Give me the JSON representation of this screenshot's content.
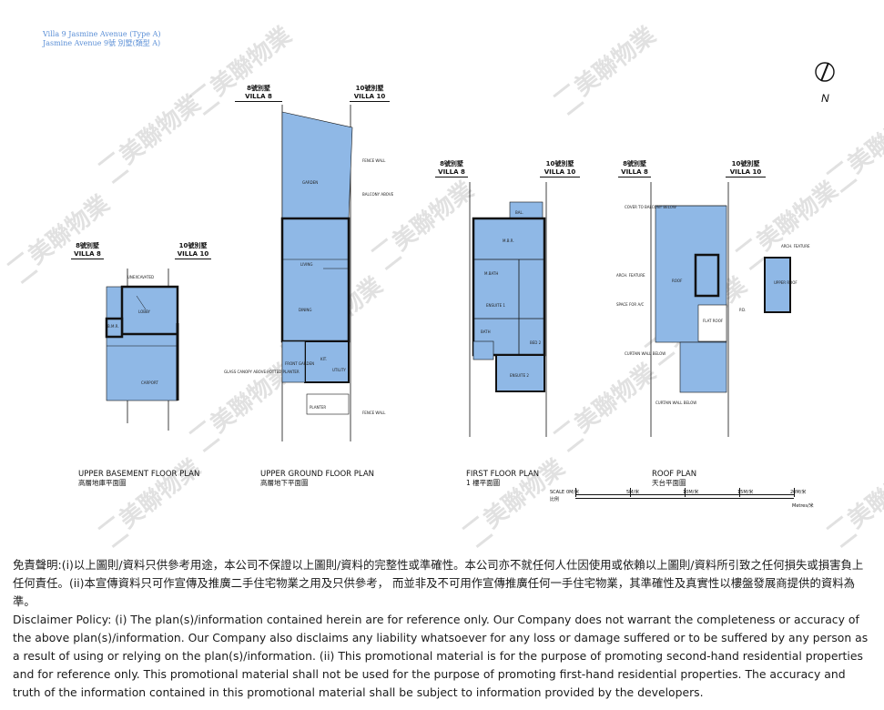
{
  "header": {
    "line1": "Villa 9 Jasmine Avenue (Type A)",
    "line2": "Jasmine Avenue 9號 別墅(類型 A)"
  },
  "north_label": "N",
  "watermark_text": "美聯物業",
  "villa_labels": {
    "v8_cn": "8號別墅",
    "v8_en": "VILLA 8",
    "v10_cn": "10號別墅",
    "v10_en": "VILLA 10"
  },
  "plans": {
    "upper_basement": {
      "en": "UPPER BASEMENT FLOOR PLAN",
      "cn": "高層地庫平面圖"
    },
    "upper_ground": {
      "en": "UPPER GROUND FLOOR PLAN",
      "cn": "高層地下平面圖"
    },
    "first_floor": {
      "en": "FIRST FLOOR PLAN",
      "cn": "1 樓平面圖"
    },
    "roof": {
      "en": "ROOF PLAN",
      "cn": "天台平面圖"
    }
  },
  "room_labels": {
    "carport": "CARPORT",
    "living": "LIVING",
    "dining": "DINING",
    "garden": "GARDEN",
    "mbr": "M.B.R.",
    "ensuite1": "ENSUITE 1",
    "ensuite2": "ENSUITE 2",
    "bal": "BAL.",
    "roof": "ROOF",
    "upper_roof": "UPPER ROOF",
    "kit": "KIT.",
    "utility": "UTILITY",
    "planter": "PLANTER",
    "fence_wall": "FENCE WALL",
    "balcony_above": "BALCONY ABOVE",
    "unexcavated": "UNEXCAVATED",
    "lobby": "LOBBY",
    "bmeter": "B.M.R.",
    "mbath": "M.BATH",
    "front_garden": "FRONT GARDEN",
    "glass_canopy": "GLASS CANOPY ABOVE POTTED PLANTER",
    "cover_to_balcony": "COVER TO BALCONY BELOW",
    "arch_feature": "ARCH. FEATURE",
    "flat_roof": "FLAT ROOF",
    "space_for_ac": "SPACE FOR A/C",
    "curtain_wall": "CURTAIN WALL BELOW",
    "bath": "BATH",
    "bed": "BED 2",
    "pd": "P.D."
  },
  "scale": {
    "label_en": "SCALE",
    "label_cn": "比例",
    "ticks": [
      "0M/米",
      "5M/米",
      "10M/米",
      "15M/米",
      "20M/米"
    ],
    "units": "Metres/米"
  },
  "disclaimer": {
    "cn": "免責聲明:(i)以上圖則/資料只供參考用途，本公司不保證以上圖則/資料的完整性或準確性。本公司亦不就任何人仕因使用或依賴以上圖則/資料所引致之任何損失或損害負上任何責任。(ii)本宣傳資料只可作宣傳及推廣二手住宅物業之用及只供參考， 而並非及不可用作宣傳推廣任何一手住宅物業，其準確性及真實性以樓盤發展商提供的資料為準。",
    "en": "Disclaimer Policy: (i) The plan(s)/information contained herein are for reference only. Our Company does not warrant the completeness or accuracy of the above plan(s)/information. Our Company also disclaims any liability whatsoever for any loss or damage suffered or to be suffered by any person as a result of using or relying on the plan(s)/information. (ii) This promotional material is for the purpose of promoting second-hand residential properties and for reference only. This promotional material shall not be used for the purpose of promoting first-hand residential properties. The accuracy and truth of the information contained in this promotional material shall be subject to information provided by the developers."
  },
  "colors": {
    "plan_fill": "#8fb8e6",
    "plan_stroke": "#1a1a1a",
    "header": "#5b8fd6"
  }
}
